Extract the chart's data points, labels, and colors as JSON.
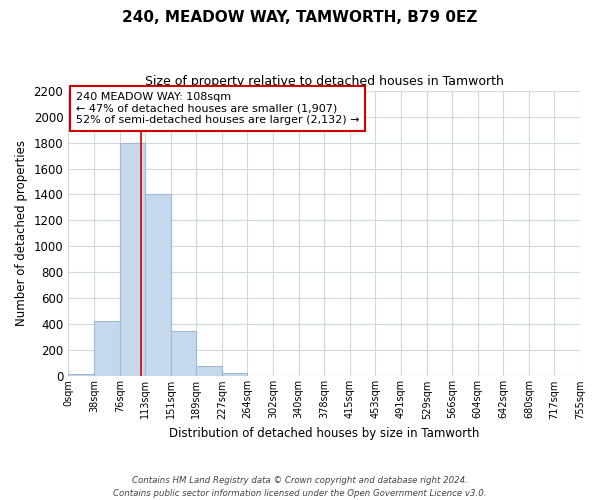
{
  "title": "240, MEADOW WAY, TAMWORTH, B79 0EZ",
  "subtitle": "Size of property relative to detached houses in Tamworth",
  "xlabel": "Distribution of detached houses by size in Tamworth",
  "ylabel": "Number of detached properties",
  "bar_edges": [
    0,
    38,
    76,
    113,
    151,
    189,
    227,
    264,
    302,
    340,
    378,
    415,
    453,
    491,
    529,
    566,
    604,
    642,
    680,
    717,
    755
  ],
  "bar_heights": [
    20,
    430,
    1800,
    1400,
    350,
    80,
    25,
    5,
    0,
    0,
    0,
    0,
    0,
    0,
    0,
    0,
    0,
    0,
    0,
    0
  ],
  "bar_color": "#c5d8ec",
  "bar_edgecolor": "#a0b8d0",
  "property_line_x": 108,
  "property_line_color": "#cc0000",
  "ylim": [
    0,
    2200
  ],
  "yticks": [
    0,
    200,
    400,
    600,
    800,
    1000,
    1200,
    1400,
    1600,
    1800,
    2000,
    2200
  ],
  "annotation_line1": "240 MEADOW WAY: 108sqm",
  "annotation_line2": "← 47% of detached houses are smaller (1,907)",
  "annotation_line3": "52% of semi-detached houses are larger (2,132) →",
  "footer_line1": "Contains HM Land Registry data © Crown copyright and database right 2024.",
  "footer_line2": "Contains public sector information licensed under the Open Government Licence v3.0.",
  "background_color": "#ffffff",
  "grid_color": "#d0d8e4",
  "tick_labels": [
    "0sqm",
    "38sqm",
    "76sqm",
    "113sqm",
    "151sqm",
    "189sqm",
    "227sqm",
    "264sqm",
    "302sqm",
    "340sqm",
    "378sqm",
    "415sqm",
    "453sqm",
    "491sqm",
    "529sqm",
    "566sqm",
    "604sqm",
    "642sqm",
    "680sqm",
    "717sqm",
    "755sqm"
  ]
}
